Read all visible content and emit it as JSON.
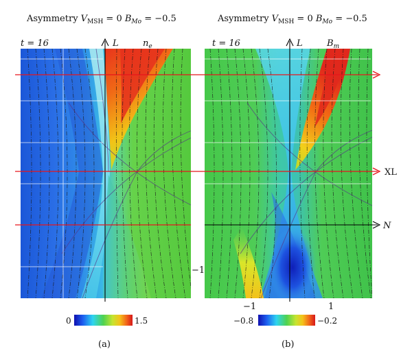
{
  "panels": [
    {
      "id": "a",
      "title_prefix": "Asymmetry ",
      "v_symbol": "V",
      "v_sub": "MSH",
      "v_value": " = 0 ",
      "b_symbol": "B",
      "b_sub": "Mo",
      "b_value": " = −0.5",
      "time_label": "t = 16",
      "axis_l_label": "L",
      "quantity_symbol": "n",
      "quantity_sub": "e",
      "colorbar_min": "0",
      "colorbar_max": "1.5",
      "caption": "(a)"
    },
    {
      "id": "b",
      "title_prefix": "Asymmetry ",
      "v_symbol": "V",
      "v_sub": "MSH",
      "v_value": " = 0 ",
      "b_symbol": "B",
      "b_sub": "Mo",
      "b_value": " = −0.5",
      "time_label": "t = 16",
      "axis_l_label": "L",
      "quantity_symbol": "B",
      "quantity_sub": "m",
      "colorbar_min": "−0.8",
      "colorbar_max": "−0.2",
      "caption": "(b)"
    }
  ],
  "axis_labels": {
    "xl": "XL",
    "n": "N",
    "tick_neg1_y": "−1",
    "tick_neg1_x": "−1",
    "tick_pos1_x": "1"
  },
  "colors": {
    "cut_line": "#e8141c",
    "axis": "#000000"
  }
}
